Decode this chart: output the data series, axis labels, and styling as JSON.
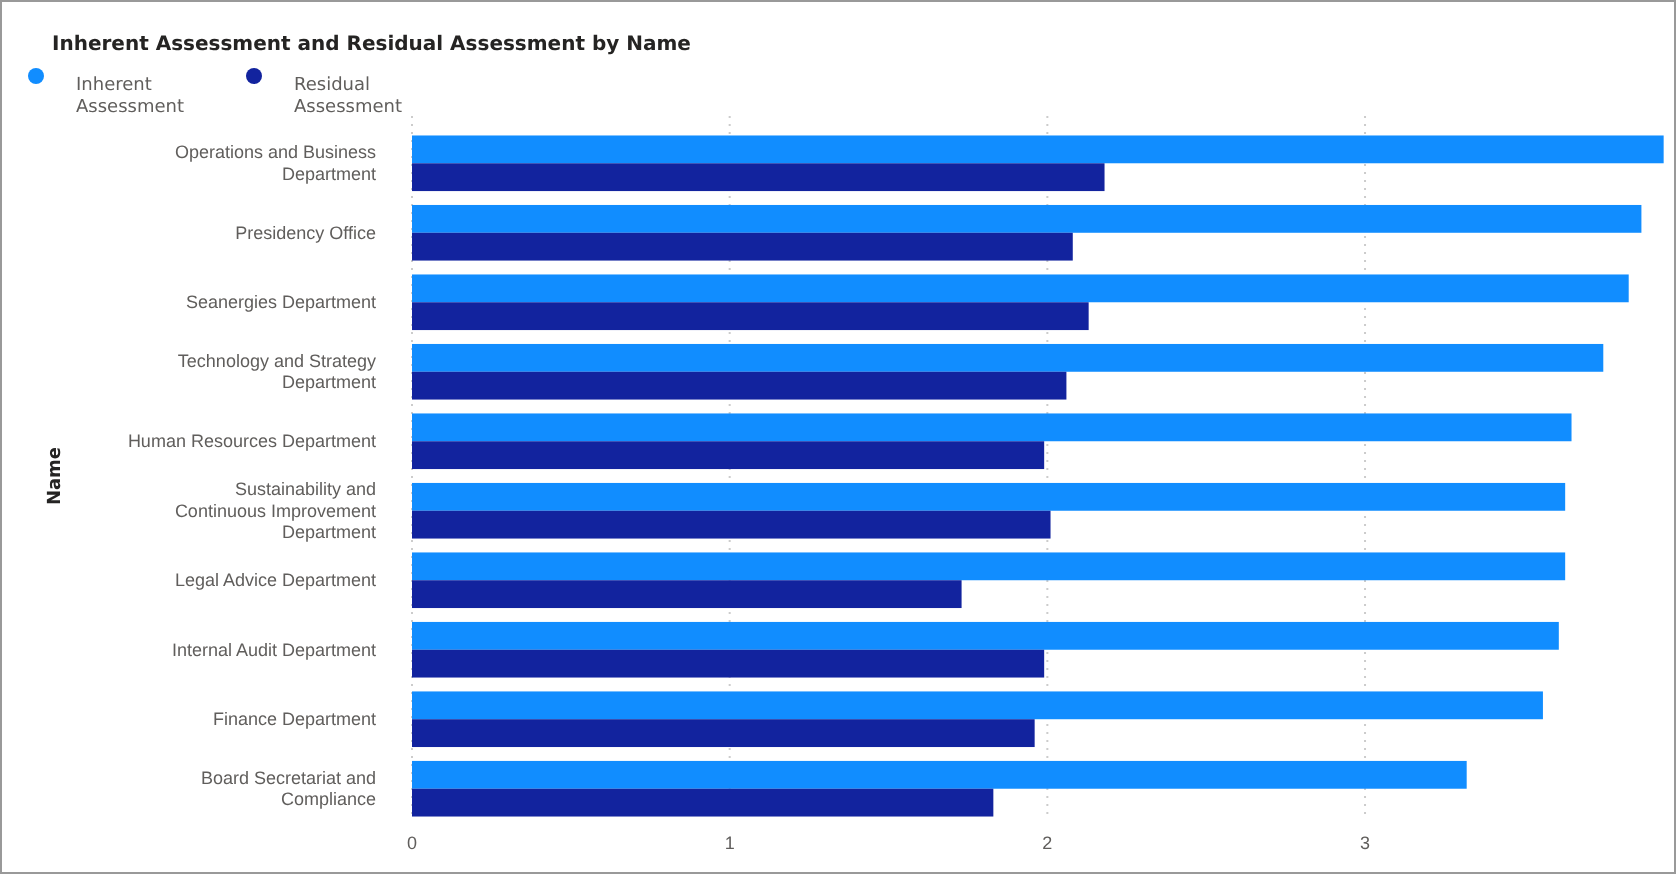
{
  "chart_data": {
    "type": "bar",
    "orientation": "horizontal",
    "title": "Inherent Assessment and Residual Assessment by Name",
    "ylabel": "Name",
    "categories": [
      "Operations and Business Department",
      "Presidency Office",
      "Seanergies Department",
      "Technology and Strategy Department",
      "Human Resources Department",
      "Sustainability and Continuous Improvement Department",
      "Legal Advice Department",
      "Internal Audit Department",
      "Finance Department",
      "Board Secretariat and Compliance"
    ],
    "series": [
      {
        "name": "Inherent Assessment",
        "color": "#118dff",
        "values": [
          3.94,
          3.87,
          3.83,
          3.75,
          3.65,
          3.63,
          3.63,
          3.61,
          3.56,
          3.32
        ]
      },
      {
        "name": "Residual Assessment",
        "color": "#12239e",
        "values": [
          2.18,
          2.08,
          2.13,
          2.06,
          1.99,
          2.01,
          1.73,
          1.99,
          1.96,
          1.83
        ]
      }
    ],
    "xlim": [
      0,
      3.96
    ],
    "xticks": [
      0,
      1,
      2,
      3
    ],
    "grid": "x",
    "legend": "top left"
  }
}
